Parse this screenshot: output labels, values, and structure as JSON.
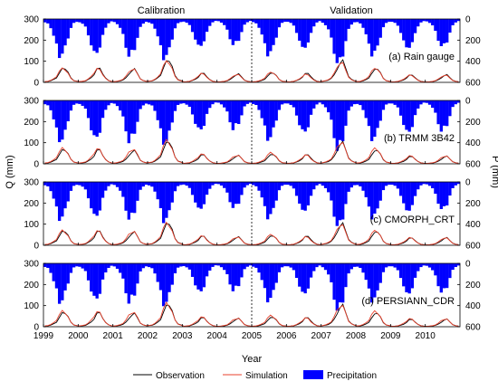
{
  "chart_data": {
    "type": "line",
    "section_titles": [
      "Calibration",
      "Validation"
    ],
    "divider_x": 2005,
    "xlabel": "Year",
    "ylabel_left": "Q (mm)",
    "ylabel_right": "P (mm)",
    "xlim": [
      1999,
      2011
    ],
    "x_ticks": [
      1999,
      2000,
      2001,
      2002,
      2003,
      2004,
      2005,
      2006,
      2007,
      2008,
      2009,
      2010
    ],
    "q_lim": [
      0,
      300
    ],
    "q_ticks": [
      0,
      100,
      200,
      300
    ],
    "p_lim": [
      0,
      600
    ],
    "p_ticks": [
      0,
      200,
      400,
      600
    ],
    "p_inverted": true,
    "colors": {
      "observation": "#000000",
      "simulation": "#e8412c",
      "precipitation": "#0000ff"
    },
    "legend": {
      "placement": "bottom",
      "entries": [
        "Observation",
        "Simulation",
        "Precipitation"
      ]
    },
    "monthly_mean": {
      "precipitation": [
        30,
        45,
        80,
        150,
        250,
        340,
        310,
        270,
        170,
        80,
        40,
        25
      ],
      "observation": [
        4,
        5,
        8,
        15,
        25,
        45,
        70,
        75,
        50,
        22,
        10,
        6
      ],
      "simulation": [
        4,
        6,
        10,
        18,
        32,
        55,
        72,
        68,
        45,
        20,
        9,
        5
      ]
    },
    "annual_factor": {
      "precipitation": [
        1.0,
        0.95,
        1.0,
        1.05,
        0.75,
        0.7,
        0.95,
        0.8,
        1.2,
        0.95,
        0.8,
        0.75
      ],
      "observation": [
        0.9,
        0.85,
        0.8,
        1.4,
        0.55,
        0.5,
        0.6,
        0.55,
        1.3,
        0.85,
        0.45,
        0.45
      ],
      "simulation": [
        0.9,
        0.85,
        0.85,
        1.35,
        0.55,
        0.5,
        0.65,
        0.5,
        1.25,
        0.9,
        0.45,
        0.45
      ]
    },
    "panels": [
      {
        "label": "(a) Rain gauge",
        "p_factor": 1.0,
        "s_factor": 1.0
      },
      {
        "label": "(b) TRMM 3B42",
        "p_factor": 1.1,
        "s_factor": 1.1
      },
      {
        "label": "(c) CMORPH_CRT",
        "p_factor": 1.0,
        "s_factor": 1.05
      },
      {
        "label": "(d) PERSIANN_CDR",
        "p_factor": 1.05,
        "s_factor": 1.1
      }
    ]
  }
}
